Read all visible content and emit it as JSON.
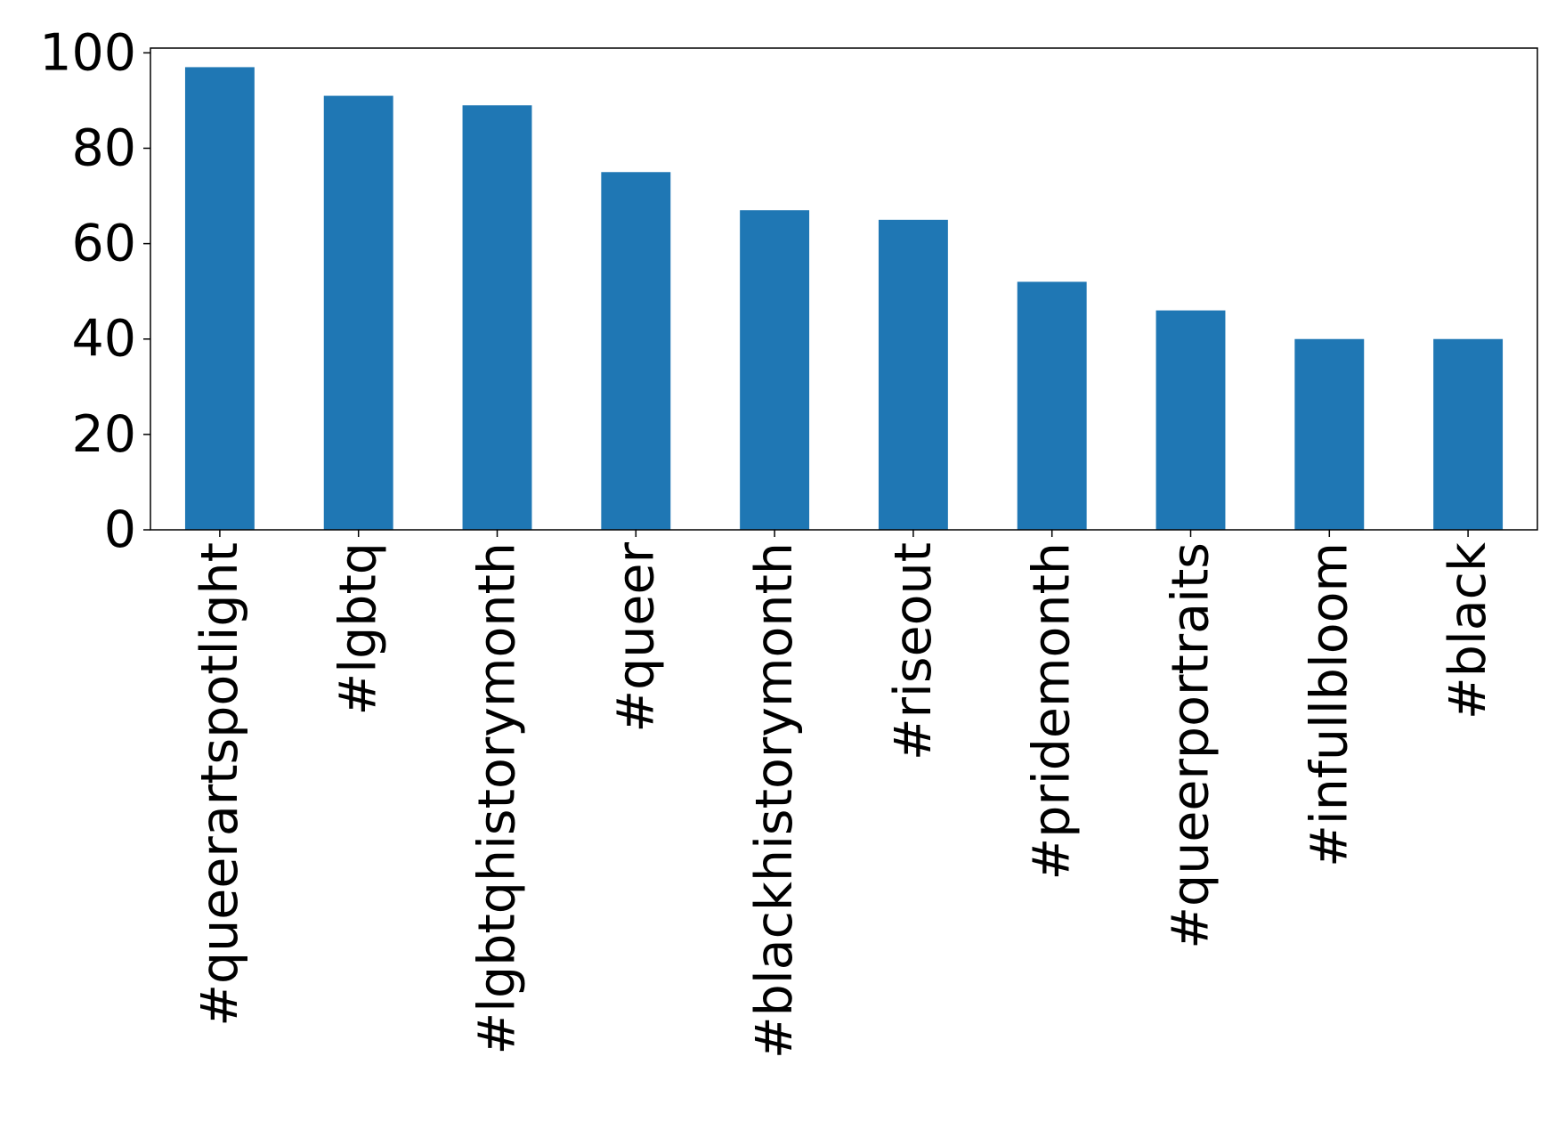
{
  "chart_data": {
    "type": "bar",
    "title": "",
    "xlabel": "",
    "ylabel": "",
    "categories": [
      "#queerartspotlight",
      "#lgbtq",
      "#lgbtqhistorymonth",
      "#queer",
      "#blackhistorymonth",
      "#riseout",
      "#pridemonth",
      "#queerportraits",
      "#infullbloom",
      "#black"
    ],
    "values": [
      97,
      91,
      89,
      75,
      67,
      65,
      52,
      46,
      40,
      40
    ],
    "ylim": [
      0,
      101
    ],
    "yticks": [
      0,
      20,
      40,
      60,
      80,
      100
    ],
    "bar_color": "#1f77b4",
    "grid": false,
    "legend": "none"
  }
}
